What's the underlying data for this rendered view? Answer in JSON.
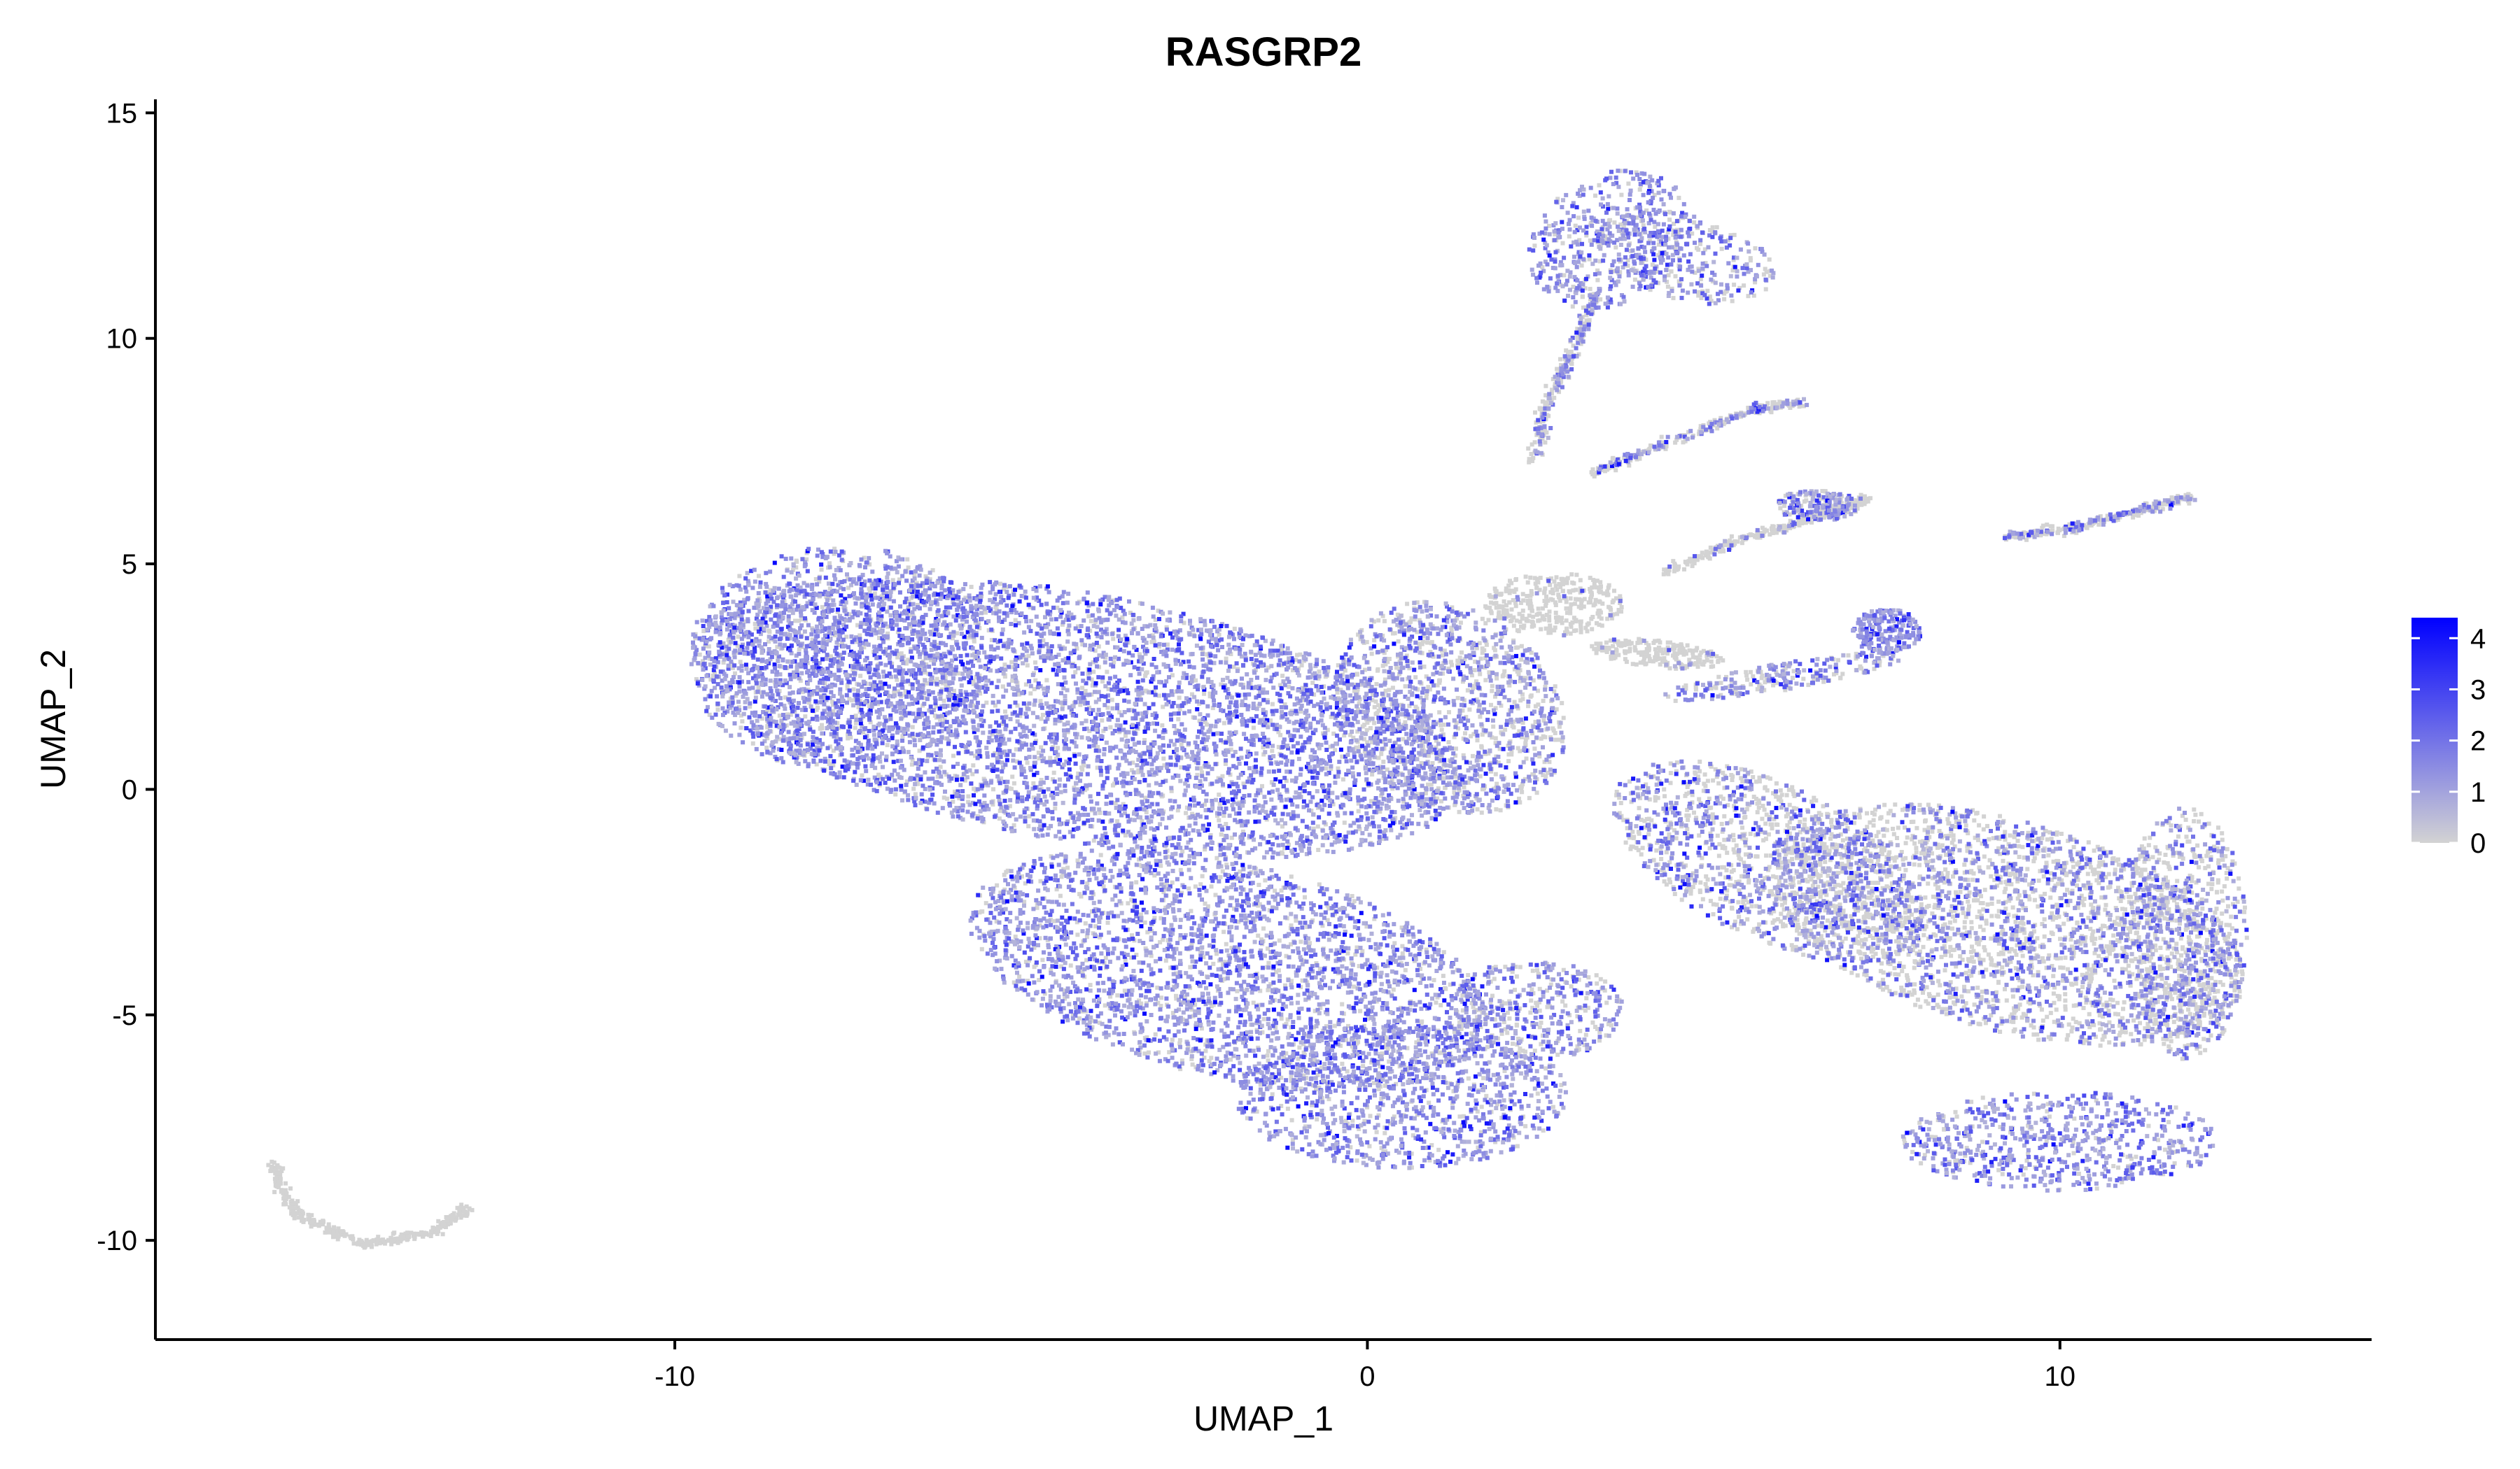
{
  "chart_data": {
    "type": "scatter",
    "title": "RASGRP2",
    "xlabel": "UMAP_1",
    "ylabel": "UMAP_2",
    "xlim": [
      -17.5,
      14.5
    ],
    "ylim": [
      -12.2,
      15.3
    ],
    "x_ticks": [
      -10,
      0,
      10
    ],
    "x_tick_labels": [
      "-10",
      "0",
      "10"
    ],
    "y_ticks": [
      -10,
      -5,
      0,
      5,
      10,
      15
    ],
    "y_tick_labels": [
      "-10",
      "-5",
      "0",
      "5",
      "10",
      "15"
    ],
    "grid": false,
    "legend": {
      "position": "right",
      "type": "colorbar",
      "range": [
        0,
        4.4
      ],
      "ticks": [
        0,
        1,
        2,
        3,
        4
      ],
      "tick_labels": [
        "0",
        "1",
        "2",
        "3",
        "4"
      ],
      "low_color": "#d3d3d3",
      "high_color": "#0000ff"
    },
    "point_colors": {
      "low": "#d3d3d3",
      "high": "#0000ff"
    },
    "clusters": [
      {
        "cx": -4.2,
        "cy": 1.6,
        "rx": 5.8,
        "ry": 2.7,
        "angle": -18,
        "density": 1.0,
        "expr": 0.85
      },
      {
        "cx": -7.6,
        "cy": 2.9,
        "rx": 2.2,
        "ry": 2.5,
        "angle": 0,
        "density": 0.6,
        "expr": 0.85
      },
      {
        "cx": -2.0,
        "cy": -4.0,
        "rx": 4.0,
        "ry": 2.3,
        "angle": -25,
        "density": 0.9,
        "expr": 0.8
      },
      {
        "cx": 0.5,
        "cy": -6.8,
        "rx": 2.4,
        "ry": 1.6,
        "angle": 0,
        "density": 0.7,
        "expr": 0.85
      },
      {
        "cx": 1.2,
        "cy": 1.8,
        "rx": 1.6,
        "ry": 2.4,
        "angle": 15,
        "density": 0.9,
        "expr": 0.6
      },
      {
        "cx": 2.7,
        "cy": 4.1,
        "rx": 1.0,
        "ry": 0.7,
        "angle": 0,
        "density": 0.6,
        "expr": 0.05
      },
      {
        "cx": 2.4,
        "cy": -4.9,
        "rx": 1.3,
        "ry": 1.1,
        "angle": 0,
        "density": 0.5,
        "expr": 0.7
      },
      {
        "cx": 5.8,
        "cy": -1.6,
        "rx": 2.8,
        "ry": 1.5,
        "angle": -45,
        "density": 0.8,
        "expr": 0.5
      },
      {
        "cx": 9.2,
        "cy": -3.0,
        "rx": 3.8,
        "ry": 2.2,
        "angle": -30,
        "density": 1.0,
        "expr": 0.45
      },
      {
        "cx": 10.0,
        "cy": -7.8,
        "rx": 2.3,
        "ry": 1.1,
        "angle": 0,
        "density": 0.6,
        "expr": 0.85
      },
      {
        "cx": 11.8,
        "cy": -3.2,
        "rx": 0.9,
        "ry": 2.8,
        "angle": 0,
        "density": 0.6,
        "expr": 0.45
      },
      {
        "cx": 3.5,
        "cy": 12.2,
        "rx": 1.1,
        "ry": 1.6,
        "angle": -20,
        "density": 0.5,
        "expr": 0.85
      },
      {
        "cx": 4.6,
        "cy": 11.8,
        "rx": 1.4,
        "ry": 0.9,
        "angle": -30,
        "density": 0.3,
        "expr": 0.6
      },
      {
        "cx": 6.5,
        "cy": 6.3,
        "rx": 0.6,
        "ry": 0.35,
        "angle": 0,
        "density": 0.25,
        "expr": 0.6
      },
      {
        "cx": 7.5,
        "cy": 3.5,
        "rx": 0.5,
        "ry": 0.5,
        "angle": 0,
        "density": 0.3,
        "expr": 1.0
      },
      {
        "cx": 6.0,
        "cy": 2.5,
        "rx": 1.8,
        "ry": 0.3,
        "angle": 15,
        "density": 0.25,
        "expr": 0.6
      },
      {
        "cx": 4.2,
        "cy": 3.0,
        "rx": 1.0,
        "ry": 0.3,
        "angle": -10,
        "density": 0.2,
        "expr": 0.1
      }
    ],
    "curves": [
      {
        "x": [
          -15.8,
          -15.5,
          -14.5,
          -13.5,
          -13.0
        ],
        "y": [
          -8.3,
          -9.4,
          -10.1,
          -9.8,
          -9.3
        ],
        "expr": 0.0
      },
      {
        "x": [
          3.2,
          4.2,
          5.5,
          6.3
        ],
        "y": [
          7.0,
          7.6,
          8.4,
          8.6
        ],
        "expr": 0.35
      },
      {
        "x": [
          4.3,
          5.3,
          6.2,
          7.3
        ],
        "y": [
          4.8,
          5.5,
          5.9,
          6.5
        ],
        "expr": 0.1
      },
      {
        "x": [
          9.2,
          10.2,
          11.2,
          11.9
        ],
        "y": [
          5.6,
          5.8,
          6.2,
          6.5
        ],
        "expr": 0.3
      },
      {
        "x": [
          2.4,
          2.6,
          3.0,
          3.3
        ],
        "y": [
          7.2,
          8.6,
          9.8,
          11.0
        ],
        "expr": 0.4
      }
    ]
  }
}
